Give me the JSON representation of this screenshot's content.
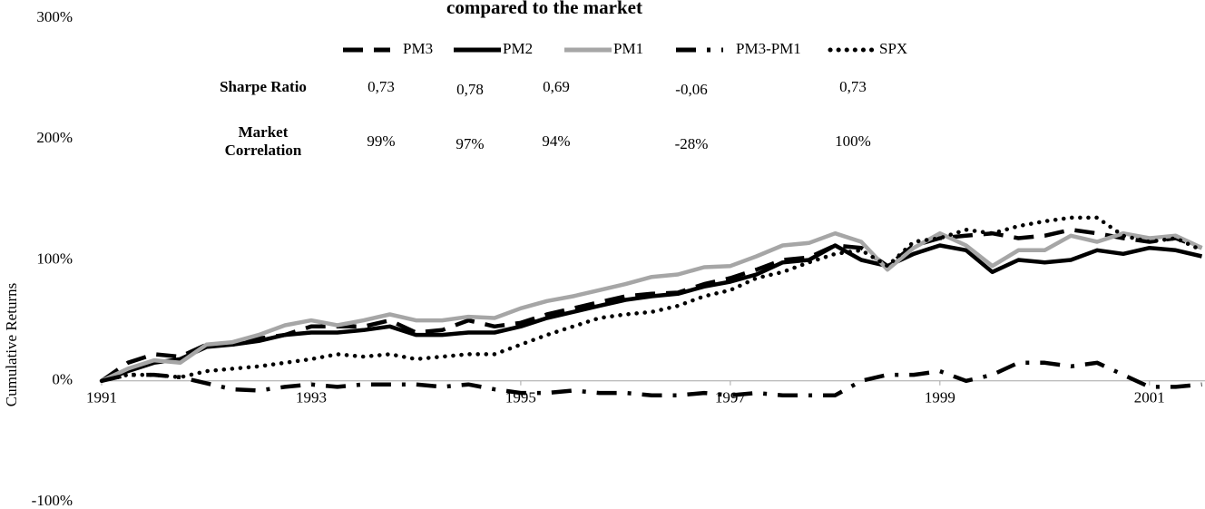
{
  "chart_data": {
    "type": "line",
    "title": "compared to the market",
    "y_label": "Cumulative Returns",
    "x": [
      1991,
      1991.25,
      1991.5,
      1991.75,
      1992,
      1992.25,
      1992.5,
      1992.75,
      1993,
      1993.25,
      1993.5,
      1993.75,
      1994,
      1994.25,
      1994.5,
      1994.75,
      1995,
      1995.25,
      1995.5,
      1995.75,
      1996,
      1996.25,
      1996.5,
      1996.75,
      1997,
      1997.25,
      1997.5,
      1997.75,
      1998,
      1998.25,
      1998.5,
      1998.75,
      1999,
      1999.25,
      1999.5,
      1999.75,
      2000,
      2000.25,
      2000.5,
      2000.75,
      2001,
      2001.25,
      2001.5
    ],
    "xlim": [
      1991,
      2001.53
    ],
    "xticks": [
      1991,
      1993,
      1995,
      1997,
      1999,
      2001
    ],
    "ylim": [
      -100,
      300
    ],
    "yticks": [
      {
        "value": -100,
        "label": "-100%"
      },
      {
        "value": 0,
        "label": "0%"
      },
      {
        "value": 100,
        "label": "100%"
      },
      {
        "value": 200,
        "label": "200%"
      },
      {
        "value": 300,
        "label": "300%"
      }
    ],
    "series": [
      {
        "name": "PM3",
        "color": "#000000",
        "style": "dashed",
        "values": [
          0,
          15,
          22,
          20,
          30,
          30,
          35,
          38,
          45,
          45,
          45,
          50,
          40,
          42,
          50,
          45,
          48,
          55,
          60,
          65,
          70,
          72,
          73,
          80,
          85,
          92,
          100,
          102,
          112,
          110,
          95,
          112,
          118,
          120,
          122,
          118,
          120,
          125,
          122,
          118,
          115,
          118,
          110
        ]
      },
      {
        "name": "PM2",
        "color": "#000000",
        "style": "solid",
        "values": [
          0,
          8,
          15,
          18,
          28,
          30,
          33,
          38,
          40,
          40,
          42,
          45,
          38,
          38,
          40,
          40,
          45,
          52,
          57,
          62,
          67,
          70,
          72,
          78,
          82,
          88,
          98,
          100,
          112,
          100,
          95,
          105,
          112,
          108,
          90,
          100,
          98,
          100,
          108,
          105,
          110,
          108,
          103
        ]
      },
      {
        "name": "PM1",
        "color": "#a6a6a6",
        "style": "solid",
        "values": [
          0,
          10,
          17,
          15,
          30,
          32,
          38,
          46,
          50,
          46,
          50,
          55,
          50,
          50,
          53,
          52,
          60,
          66,
          70,
          75,
          80,
          86,
          88,
          94,
          95,
          103,
          112,
          114,
          122,
          115,
          92,
          110,
          122,
          112,
          95,
          108,
          108,
          120,
          115,
          122,
          118,
          120,
          110
        ]
      },
      {
        "name": "PM3-PM1",
        "color": "#000000",
        "style": "dashdot",
        "values": [
          0,
          5,
          5,
          3,
          -2,
          -7,
          -8,
          -5,
          -3,
          -5,
          -3,
          -3,
          -3,
          -5,
          -3,
          -7,
          -10,
          -10,
          -8,
          -10,
          -10,
          -12,
          -12,
          -10,
          -12,
          -10,
          -12,
          -12,
          -12,
          0,
          5,
          5,
          8,
          0,
          5,
          15,
          15,
          12,
          15,
          5,
          -5,
          -5,
          -3
        ]
      },
      {
        "name": "SPX",
        "color": "#000000",
        "style": "dotted",
        "values": [
          0,
          5,
          5,
          3,
          8,
          10,
          12,
          15,
          18,
          22,
          20,
          22,
          18,
          20,
          22,
          22,
          30,
          38,
          45,
          52,
          55,
          57,
          62,
          70,
          75,
          85,
          90,
          98,
          105,
          108,
          95,
          115,
          118,
          125,
          122,
          128,
          132,
          135,
          135,
          120,
          115,
          118,
          108
        ]
      }
    ],
    "stats_table": {
      "rows": [
        {
          "label": [
            "Sharpe Ratio"
          ],
          "values": [
            "0,73",
            "0,78",
            "0,69",
            "-0,06",
            "0,73"
          ]
        },
        {
          "label": [
            "Market",
            "Correlation"
          ],
          "values": [
            "99%",
            "97%",
            "94%",
            "-28%",
            "100%"
          ]
        }
      ]
    }
  }
}
